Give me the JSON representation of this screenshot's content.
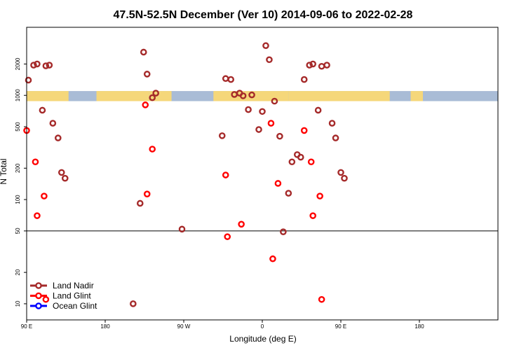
{
  "chart_data": {
    "type": "scatter",
    "title": "47.5N-52.5N December (Ver 10)   2014-09-06 to 2022-02-28",
    "xlabel": "Longitude (deg E)",
    "ylabel": "N Total",
    "xlim": [
      -90,
      180
    ],
    "ylim_log": [
      7,
      4500
    ],
    "x_ticks": [
      {
        "value": -90,
        "label": "90 E"
      },
      {
        "value": -45,
        "label": "180"
      },
      {
        "value": 0,
        "label": "90 W"
      },
      {
        "value": 45,
        "label": "0"
      },
      {
        "value": 90,
        "label": "90 E"
      },
      {
        "value": 135,
        "label": "180"
      }
    ],
    "y_ticks": [
      {
        "value": 10,
        "label": "10"
      },
      {
        "value": 20,
        "label": "20"
      },
      {
        "value": 50,
        "label": "50"
      },
      {
        "value": 100,
        "label": "100"
      },
      {
        "value": 200,
        "label": "200"
      },
      {
        "value": 500,
        "label": "500"
      },
      {
        "value": 1000,
        "label": "1000"
      },
      {
        "value": 2000,
        "label": "2000"
      }
    ],
    "reference_line": 50,
    "land_band": {
      "y_low": 880,
      "y_high": 1100,
      "land_color": "#f5d77a",
      "ocean_color": "#a9bcd6",
      "land_spans": [
        [
          -90,
          -66
        ],
        [
          -50,
          -20
        ],
        [
          -20,
          -7
        ],
        [
          17,
          35
        ],
        [
          35,
          60
        ],
        [
          60,
          118
        ],
        [
          130,
          137
        ]
      ]
    },
    "series": [
      {
        "name": "Land Nadir",
        "color": "#a52a2a",
        "points": [
          [
            -89,
            1400
          ],
          [
            -86,
            1950
          ],
          [
            -84,
            2000
          ],
          [
            -81,
            720
          ],
          [
            -79,
            1920
          ],
          [
            -77,
            1950
          ],
          [
            -75,
            540
          ],
          [
            -72,
            390
          ],
          [
            -70,
            182
          ],
          [
            -68,
            160
          ],
          [
            -29,
            10
          ],
          [
            -25,
            92
          ],
          [
            -23,
            2600
          ],
          [
            -21,
            1600
          ],
          [
            -18,
            950
          ],
          [
            -16,
            1050
          ],
          [
            -1,
            52
          ],
          [
            22,
            410
          ],
          [
            24,
            1450
          ],
          [
            27,
            1420
          ],
          [
            29,
            1020
          ],
          [
            32,
            1050
          ],
          [
            34,
            990
          ],
          [
            37,
            730
          ],
          [
            39,
            1010
          ],
          [
            43,
            470
          ],
          [
            45,
            700
          ],
          [
            47,
            3000
          ],
          [
            49,
            2200
          ],
          [
            52,
            880
          ],
          [
            55,
            405
          ],
          [
            57,
            49
          ],
          [
            60,
            115
          ],
          [
            62,
            230
          ],
          [
            65,
            270
          ],
          [
            67,
            255
          ],
          [
            69,
            1420
          ],
          [
            72,
            1950
          ],
          [
            74,
            2000
          ],
          [
            77,
            720
          ],
          [
            79,
            1900
          ],
          [
            82,
            1950
          ],
          [
            85,
            540
          ],
          [
            87,
            390
          ],
          [
            90,
            182
          ],
          [
            92,
            160
          ]
        ]
      },
      {
        "name": "Land Glint",
        "color": "#ff0000",
        "points": [
          [
            -90,
            460
          ],
          [
            -85,
            230
          ],
          [
            -84,
            70
          ],
          [
            -80,
            108
          ],
          [
            -79,
            11
          ],
          [
            -22,
            810
          ],
          [
            -21,
            113
          ],
          [
            -18,
            305
          ],
          [
            25,
            44
          ],
          [
            24,
            172
          ],
          [
            33,
            58
          ],
          [
            50,
            540
          ],
          [
            51,
            27
          ],
          [
            54,
            143
          ],
          [
            69,
            460
          ],
          [
            73,
            230
          ],
          [
            74,
            70
          ],
          [
            78,
            108
          ],
          [
            79,
            11
          ]
        ]
      },
      {
        "name": "Ocean Glint",
        "color": "#0000ff",
        "points": []
      }
    ],
    "legend": {
      "position": "bottom-left",
      "entries": [
        {
          "label": "Land Nadir",
          "color": "#a52a2a"
        },
        {
          "label": "Land Glint",
          "color": "#ff0000"
        },
        {
          "label": "Ocean Glint",
          "color": "#0000ff"
        }
      ]
    }
  }
}
